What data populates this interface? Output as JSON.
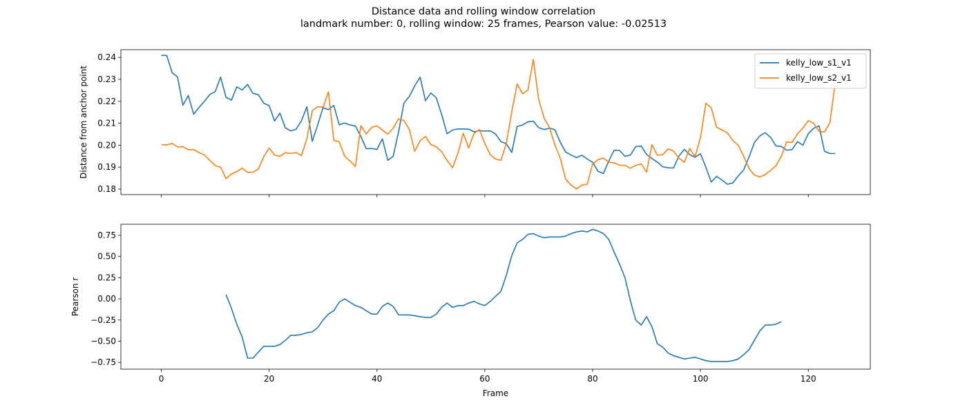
{
  "figure": {
    "title_line1": "Distance data and rolling window correlation",
    "title_line2": "landmark number: 0, rolling window: 25 frames, Pearson value: -0.02513"
  },
  "chart_data": [
    {
      "type": "line",
      "title": "",
      "xlabel": "",
      "ylabel": "Distance from anchor point",
      "xlim": [
        -7.5,
        131.5
      ],
      "ylim": [
        0.1775,
        0.2435
      ],
      "xticks": [
        0,
        20,
        40,
        60,
        80,
        100,
        120
      ],
      "xticklabels": [
        "",
        "",
        "",
        "",
        "",
        "",
        ""
      ],
      "yticks": [
        0.18,
        0.19,
        0.2,
        0.21,
        0.22,
        0.23,
        0.24
      ],
      "yticklabels": [
        "0.18",
        "0.19",
        "0.20",
        "0.21",
        "0.22",
        "0.23",
        "0.24"
      ],
      "grid": false,
      "legend": "top-right",
      "series": [
        {
          "name": "kelly_low_s1_v1",
          "color": "#1f77b4",
          "values": [
            0.2409,
            0.2409,
            0.233,
            0.2311,
            0.2182,
            0.2226,
            0.2141,
            0.2172,
            0.22,
            0.2231,
            0.2244,
            0.231,
            0.2218,
            0.2205,
            0.2266,
            0.2251,
            0.2277,
            0.2236,
            0.223,
            0.2191,
            0.218,
            0.211,
            0.2146,
            0.2079,
            0.2065,
            0.2073,
            0.2112,
            0.2175,
            0.2017,
            0.2092,
            0.2171,
            0.2162,
            0.2181,
            0.2093,
            0.2101,
            0.2092,
            0.2087,
            0.204,
            0.1984,
            0.1985,
            0.1981,
            0.2029,
            0.1931,
            0.1949,
            0.206,
            0.2192,
            0.2222,
            0.227,
            0.231,
            0.2202,
            0.2238,
            0.2216,
            0.214,
            0.2052,
            0.2069,
            0.2074,
            0.2074,
            0.2073,
            0.2061,
            0.2066,
            0.2064,
            0.2065,
            0.2051,
            0.2016,
            0.2007,
            0.1967,
            0.2085,
            0.2092,
            0.2107,
            0.2109,
            0.208,
            0.2071,
            0.2078,
            0.207,
            0.2013,
            0.1969,
            0.1955,
            0.1943,
            0.1954,
            0.1937,
            0.1922,
            0.1881,
            0.1871,
            0.1928,
            0.1977,
            0.1976,
            0.1949,
            0.1955,
            0.1993,
            0.1996,
            0.1958,
            0.1939,
            0.1923,
            0.1902,
            0.1897,
            0.1896,
            0.195,
            0.1981,
            0.1957,
            0.1945,
            0.1961,
            0.19,
            0.1832,
            0.1858,
            0.1841,
            0.1822,
            0.1828,
            0.186,
            0.1887,
            0.1946,
            0.2012,
            0.2042,
            0.2057,
            0.2036,
            0.1997,
            0.1994,
            0.1977,
            0.198,
            0.2016,
            0.2,
            0.2052,
            0.2077,
            0.2088,
            0.1972,
            0.1962,
            0.1962
          ]
        },
        {
          "name": "kelly_low_s2_v1",
          "color": "#ff7f0e",
          "values": [
            0.2003,
            0.2001,
            0.2008,
            0.1992,
            0.1993,
            0.1979,
            0.198,
            0.1966,
            0.1955,
            0.1931,
            0.1907,
            0.1899,
            0.1848,
            0.1868,
            0.188,
            0.1895,
            0.1876,
            0.1877,
            0.1891,
            0.1948,
            0.1987,
            0.1955,
            0.1949,
            0.1966,
            0.1962,
            0.1966,
            0.1953,
            0.203,
            0.2157,
            0.2175,
            0.2173,
            0.2243,
            0.2021,
            0.2016,
            0.195,
            0.1928,
            0.1903,
            0.2089,
            0.2051,
            0.2081,
            0.2088,
            0.2069,
            0.205,
            0.2077,
            0.212,
            0.2112,
            0.2072,
            0.1972,
            0.202,
            0.204,
            0.2003,
            0.1993,
            0.197,
            0.1931,
            0.1897,
            0.1963,
            0.2054,
            0.1987,
            0.2053,
            0.2071,
            0.2008,
            0.1957,
            0.1937,
            0.1931,
            0.2009,
            0.2152,
            0.2279,
            0.2234,
            0.2251,
            0.2391,
            0.2208,
            0.2123,
            0.208,
            0.2001,
            0.194,
            0.1845,
            0.1818,
            0.1801,
            0.1818,
            0.1822,
            0.1914,
            0.1934,
            0.1941,
            0.1923,
            0.1919,
            0.1909,
            0.1908,
            0.1895,
            0.1908,
            0.1915,
            0.1877,
            0.2002,
            0.1954,
            0.1957,
            0.1983,
            0.1973,
            0.1941,
            0.1922,
            0.1985,
            0.1948,
            0.2034,
            0.2191,
            0.217,
            0.2082,
            0.2069,
            0.2056,
            0.2021,
            0.2,
            0.195,
            0.1894,
            0.1864,
            0.1855,
            0.1866,
            0.1885,
            0.1906,
            0.195,
            0.2015,
            0.2013,
            0.2052,
            0.2078,
            0.2112,
            0.21,
            0.2063,
            0.206,
            0.2103,
            0.2285
          ]
        }
      ]
    },
    {
      "type": "line",
      "title": "",
      "xlabel": "Frame",
      "ylabel": "Pearson r",
      "xlim": [
        -7.5,
        131.5
      ],
      "ylim": [
        -0.83,
        0.88
      ],
      "xticks": [
        0,
        20,
        40,
        60,
        80,
        100,
        120
      ],
      "xticklabels": [
        "0",
        "20",
        "40",
        "60",
        "80",
        "100",
        "120"
      ],
      "yticks": [
        -0.75,
        -0.5,
        -0.25,
        0.0,
        0.25,
        0.5,
        0.75
      ],
      "yticklabels": [
        "−0.75",
        "−0.50",
        "−0.25",
        "0.00",
        "0.25",
        "0.50",
        "0.75"
      ],
      "grid": false,
      "legend": "none",
      "series": [
        {
          "color": "#1f77b4",
          "x_start": 12,
          "values": [
            0.05,
            -0.11,
            -0.3,
            -0.45,
            -0.7,
            -0.7,
            -0.63,
            -0.56,
            -0.56,
            -0.56,
            -0.54,
            -0.49,
            -0.43,
            -0.43,
            -0.42,
            -0.4,
            -0.39,
            -0.34,
            -0.25,
            -0.18,
            -0.14,
            -0.04,
            0.0,
            -0.04,
            -0.08,
            -0.1,
            -0.14,
            -0.18,
            -0.18,
            -0.09,
            -0.05,
            -0.09,
            -0.19,
            -0.19,
            -0.19,
            -0.2,
            -0.21,
            -0.22,
            -0.22,
            -0.18,
            -0.1,
            -0.05,
            -0.1,
            -0.08,
            -0.08,
            -0.05,
            -0.03,
            -0.06,
            -0.08,
            -0.03,
            0.03,
            0.09,
            0.28,
            0.51,
            0.66,
            0.7,
            0.76,
            0.77,
            0.74,
            0.72,
            0.73,
            0.73,
            0.73,
            0.74,
            0.77,
            0.79,
            0.8,
            0.79,
            0.82,
            0.8,
            0.77,
            0.7,
            0.55,
            0.41,
            0.25,
            -0.02,
            -0.25,
            -0.31,
            -0.21,
            -0.33,
            -0.53,
            -0.57,
            -0.64,
            -0.67,
            -0.69,
            -0.71,
            -0.7,
            -0.69,
            -0.71,
            -0.73,
            -0.74,
            -0.74,
            -0.74,
            -0.74,
            -0.73,
            -0.71,
            -0.66,
            -0.6,
            -0.49,
            -0.38,
            -0.31,
            -0.31,
            -0.3,
            -0.27
          ]
        }
      ]
    }
  ]
}
